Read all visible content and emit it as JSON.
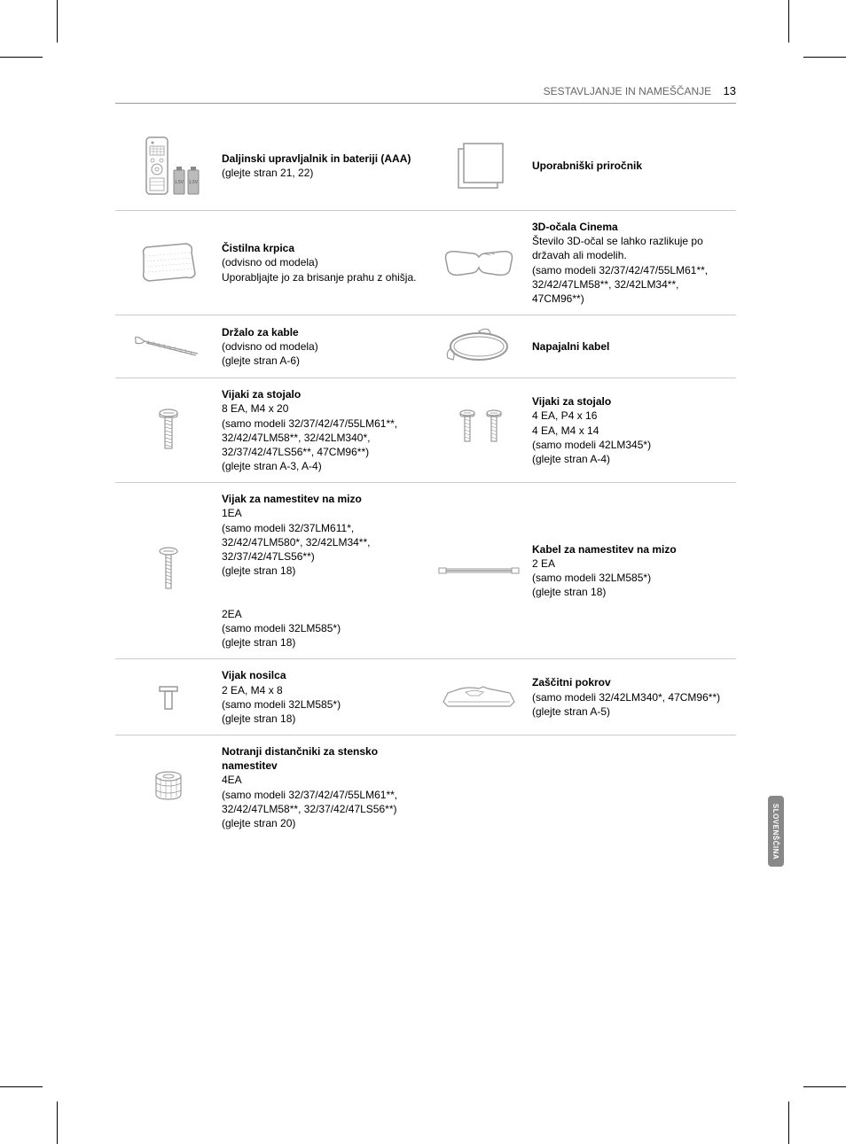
{
  "header": {
    "section": "SESTAVLJANJE IN NAMEŠČANJE",
    "page": "13"
  },
  "side_tab": "SLOVENŠČINA",
  "rows": [
    {
      "left": {
        "title": "Daljinski upravljalnik in bateriji (AAA)",
        "sub": "(glejte stran 21, 22)",
        "icon": "remote"
      },
      "right": {
        "title": "Uporabniški priročnik",
        "sub": "",
        "icon": "manual"
      }
    },
    {
      "left": {
        "title": "Čistilna krpica",
        "sub": "(odvisno od modela)\nUporabljajte jo za brisanje prahu z ohišja.",
        "icon": "cloth"
      },
      "right": {
        "title": "3D-očala Cinema",
        "sub": "Število 3D-očal se lahko razlikuje po državah ali modelih.\n(samo modeli 32/37/42/47/55LM61**, 32/42/47LM58**, 32/42LM34**, 47CM96**)",
        "icon": "glasses"
      }
    },
    {
      "left": {
        "title": "Držalo za kable",
        "sub": "(odvisno od modela)\n(glejte stran A-6)",
        "icon": "holder"
      },
      "right": {
        "title": "Napajalni kabel",
        "sub": "",
        "icon": "power-cord"
      }
    },
    {
      "left": {
        "title": "Vijaki za stojalo",
        "sub": "8 EA, M4 x 20\n(samo modeli 32/37/42/47/55LM61**, 32/42/47LM58**, 32/42LM340*, 32/37/42/47LS56**, 47CM96**)\n(glejte stran A-3, A-4)",
        "icon": "screw1"
      },
      "right": {
        "title": "Vijaki za stojalo",
        "sub": "4 EA, P4 x 16\n4 EA, M4 x 14\n(samo modeli 42LM345*)\n(glejte stran A-4)",
        "icon": "screw2"
      }
    },
    {
      "left": {
        "title": "Vijak za namestitev na mizo",
        "sub": "1EA\n(samo modeli 32/37LM611*, 32/42/47LM580*, 32/42LM34**, 32/37/42/47LS56**)\n(glejte stran 18)\n\n2EA\n(samo modeli 32LM585*)\n(glejte stran 18)",
        "icon": "screw3"
      },
      "right": {
        "title": "Kabel za namestitev na mizo",
        "sub": "2 EA\n(samo modeli 32LM585*)\n(glejte stran 18)",
        "icon": "cable"
      }
    },
    {
      "left": {
        "title": "Vijak nosilca",
        "sub": "2 EA, M4 x 8\n(samo modeli 32LM585*)\n(glejte stran 18)",
        "icon": "bracket-screw"
      },
      "right": {
        "title": "Zaščitni pokrov",
        "sub": "(samo modeli 32/42LM340*, 47CM96**)\n(glejte stran A-5)",
        "icon": "cover"
      }
    },
    {
      "left": {
        "title": "Notranji distančniki za stensko namestitev",
        "sub": "4EA\n(samo modeli 32/37/42/47/55LM61**, 32/42/47LM58**, 32/37/42/47LS56**)\n(glejte stran 20)",
        "icon": "spacer"
      },
      "right": null
    }
  ]
}
